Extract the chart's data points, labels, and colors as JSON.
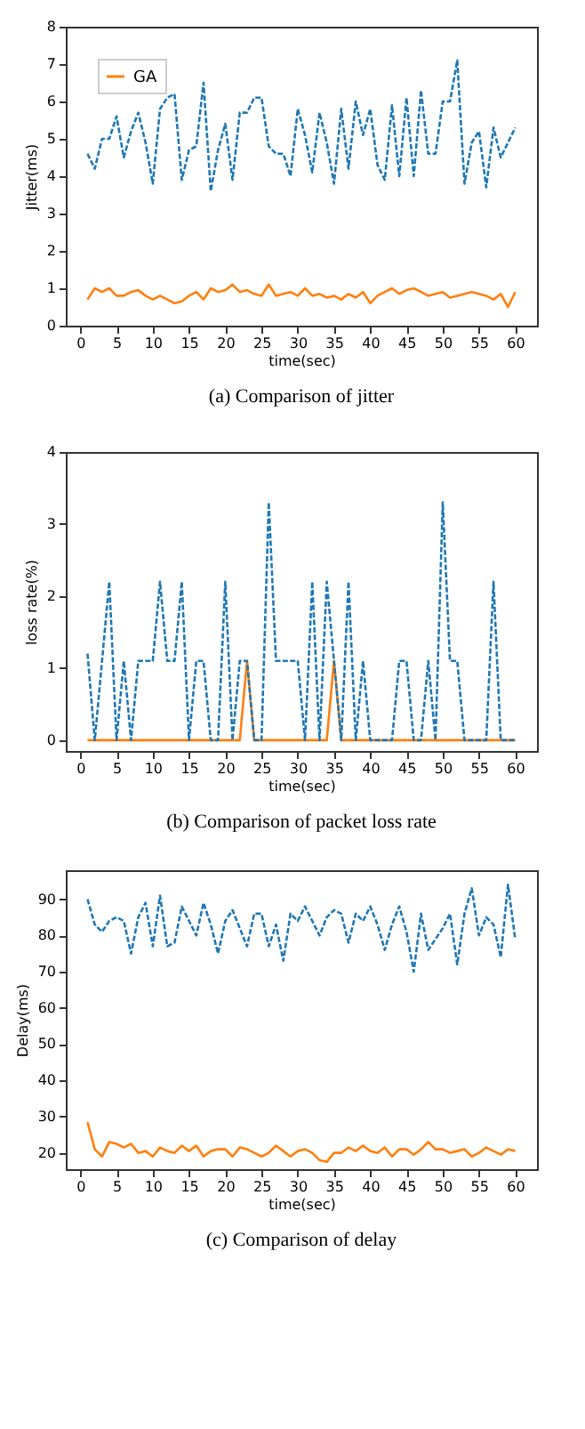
{
  "chart_data": [
    {
      "type": "line",
      "title": "(a) Comparison of jitter",
      "xlabel": "time(sec)",
      "ylabel": "Jitter(ms)",
      "x": [
        1,
        2,
        3,
        4,
        5,
        6,
        7,
        8,
        9,
        10,
        11,
        12,
        13,
        14,
        15,
        16,
        17,
        18,
        19,
        20,
        21,
        22,
        23,
        24,
        25,
        26,
        27,
        28,
        29,
        30,
        31,
        32,
        33,
        34,
        35,
        36,
        37,
        38,
        39,
        40,
        41,
        42,
        43,
        44,
        45,
        46,
        47,
        48,
        49,
        50,
        51,
        52,
        53,
        54,
        55,
        56,
        57,
        58,
        59,
        60
      ],
      "xlim": [
        -2,
        63
      ],
      "xticks": [
        0,
        5,
        10,
        15,
        20,
        25,
        30,
        35,
        40,
        45,
        50,
        55,
        60
      ],
      "ylim": [
        0,
        8
      ],
      "yticks": [
        0,
        1,
        2,
        3,
        4,
        5,
        6,
        7,
        8
      ],
      "legend": "top left",
      "grid": false,
      "series": [
        {
          "color": "#1f77b4",
          "line_style": "dashed",
          "values": [
            4.6,
            4.2,
            5.0,
            5.0,
            5.6,
            4.5,
            5.2,
            5.7,
            4.9,
            3.8,
            5.8,
            6.1,
            6.2,
            3.9,
            4.7,
            4.8,
            6.5,
            3.6,
            4.7,
            5.4,
            3.9,
            5.7,
            5.7,
            6.1,
            6.1,
            4.8,
            4.6,
            4.6,
            4.0,
            5.8,
            5.1,
            4.1,
            5.7,
            4.9,
            3.8,
            5.8,
            4.2,
            6.0,
            5.1,
            5.8,
            4.3,
            3.9,
            5.9,
            4.0,
            6.1,
            4.0,
            6.3,
            4.6,
            4.6,
            6.0,
            6.0,
            7.1,
            3.8,
            4.9,
            5.2,
            3.7,
            5.3,
            4.5,
            4.9,
            5.3
          ]
        },
        {
          "name": "GA",
          "color": "#ff7f0e",
          "line_style": "solid",
          "values": [
            0.7,
            1.0,
            0.9,
            1.0,
            0.8,
            0.8,
            0.9,
            0.95,
            0.8,
            0.7,
            0.8,
            0.7,
            0.6,
            0.65,
            0.8,
            0.9,
            0.7,
            1.0,
            0.9,
            0.95,
            1.1,
            0.9,
            0.95,
            0.85,
            0.8,
            1.1,
            0.8,
            0.85,
            0.9,
            0.8,
            1.0,
            0.8,
            0.85,
            0.75,
            0.8,
            0.7,
            0.85,
            0.75,
            0.9,
            0.6,
            0.8,
            0.9,
            1.0,
            0.85,
            0.95,
            1.0,
            0.9,
            0.8,
            0.85,
            0.9,
            0.75,
            0.8,
            0.85,
            0.9,
            0.85,
            0.8,
            0.7,
            0.85,
            0.5,
            0.9
          ]
        }
      ]
    },
    {
      "type": "line",
      "title": "(b) Comparison of packet loss rate",
      "xlabel": "time(sec)",
      "ylabel": "loss rate(%)",
      "x": [
        1,
        2,
        3,
        4,
        5,
        6,
        7,
        8,
        9,
        10,
        11,
        12,
        13,
        14,
        15,
        16,
        17,
        18,
        19,
        20,
        21,
        22,
        23,
        24,
        25,
        26,
        27,
        28,
        29,
        30,
        31,
        32,
        33,
        34,
        35,
        36,
        37,
        38,
        39,
        40,
        41,
        42,
        43,
        44,
        45,
        46,
        47,
        48,
        49,
        50,
        51,
        52,
        53,
        54,
        55,
        56,
        57,
        58,
        59,
        60
      ],
      "xlim": [
        -2,
        63
      ],
      "xticks": [
        0,
        5,
        10,
        15,
        20,
        25,
        30,
        35,
        40,
        45,
        50,
        55,
        60
      ],
      "ylim": [
        -0.15,
        4
      ],
      "yticks": [
        0,
        1,
        2,
        3,
        4
      ],
      "legend": "top left",
      "grid": false,
      "series": [
        {
          "color": "#1f77b4",
          "line_style": "dashed",
          "values": [
            1.2,
            0,
            1.1,
            2.2,
            0,
            1.1,
            0,
            1.1,
            1.1,
            1.1,
            2.2,
            1.1,
            1.1,
            2.2,
            0,
            1.1,
            1.1,
            0,
            0,
            2.2,
            0,
            1.1,
            1.1,
            0,
            0,
            3.3,
            1.1,
            1.1,
            1.1,
            1.1,
            0,
            2.2,
            0,
            2.2,
            1.1,
            0,
            2.2,
            0,
            1.1,
            0,
            0,
            0,
            0,
            1.1,
            1.1,
            0,
            0,
            1.1,
            0,
            3.3,
            1.1,
            1.1,
            0,
            0,
            0,
            0,
            2.2,
            0,
            0,
            0
          ]
        },
        {
          "name": "GA",
          "color": "#ff7f0e",
          "line_style": "solid",
          "values": [
            0,
            0,
            0,
            0,
            0,
            0,
            0,
            0,
            0,
            0,
            0,
            0,
            0,
            0,
            0,
            0,
            0,
            0,
            0,
            0,
            0,
            0,
            1.1,
            0,
            0,
            0,
            0,
            0,
            0,
            0,
            0,
            0,
            0,
            0,
            1.1,
            0,
            0,
            0,
            0,
            0,
            0,
            0,
            0,
            0,
            0,
            0,
            0,
            0,
            0,
            0,
            0,
            0,
            0,
            0,
            0,
            0,
            0,
            0,
            0,
            0
          ]
        }
      ]
    },
    {
      "type": "line",
      "title": "(c) Comparison of delay",
      "xlabel": "time(sec)",
      "ylabel": "Delay(ms)",
      "x": [
        1,
        2,
        3,
        4,
        5,
        6,
        7,
        8,
        9,
        10,
        11,
        12,
        13,
        14,
        15,
        16,
        17,
        18,
        19,
        20,
        21,
        22,
        23,
        24,
        25,
        26,
        27,
        28,
        29,
        30,
        31,
        32,
        33,
        34,
        35,
        36,
        37,
        38,
        39,
        40,
        41,
        42,
        43,
        44,
        45,
        46,
        47,
        48,
        49,
        50,
        51,
        52,
        53,
        54,
        55,
        56,
        57,
        58,
        59,
        60
      ],
      "xlim": [
        -2,
        63
      ],
      "xticks": [
        0,
        5,
        10,
        15,
        20,
        25,
        30,
        35,
        40,
        45,
        50,
        55,
        60
      ],
      "ylim": [
        15.5,
        98
      ],
      "yticks": [
        20,
        30,
        40,
        50,
        60,
        70,
        80,
        90
      ],
      "legend": "top left",
      "grid": false,
      "series": [
        {
          "color": "#1f77b4",
          "line_style": "dashed",
          "values": [
            90,
            83,
            81,
            84,
            85,
            84,
            75,
            85,
            89,
            77,
            91,
            77,
            78,
            88,
            84,
            80,
            89,
            83,
            75,
            84,
            87,
            82,
            77,
            86,
            86,
            77,
            83,
            73,
            86,
            84,
            88,
            84,
            80,
            85,
            87,
            86,
            78,
            86,
            84,
            88,
            83,
            76,
            83,
            88,
            81,
            70,
            86,
            76,
            79,
            82,
            86,
            72,
            86,
            93,
            80,
            85,
            83,
            74,
            94,
            79
          ]
        },
        {
          "name": "GA",
          "color": "#ff7f0e",
          "line_style": "solid",
          "values": [
            28.5,
            21,
            19,
            23,
            22.5,
            21.5,
            22.5,
            20,
            20.5,
            19,
            21.5,
            20.5,
            20,
            22,
            20.5,
            22,
            19,
            20.5,
            21,
            21,
            19,
            21.5,
            21,
            20,
            19,
            20,
            22,
            20.5,
            19,
            20.5,
            21,
            20,
            18,
            17.5,
            20,
            20,
            21.5,
            20.5,
            22,
            20.5,
            20,
            21.5,
            19,
            21,
            21,
            19.5,
            21,
            23,
            21,
            21,
            20,
            20.5,
            21,
            19,
            20,
            21.5,
            20.5,
            19.5,
            21,
            20.5
          ]
        }
      ]
    }
  ]
}
